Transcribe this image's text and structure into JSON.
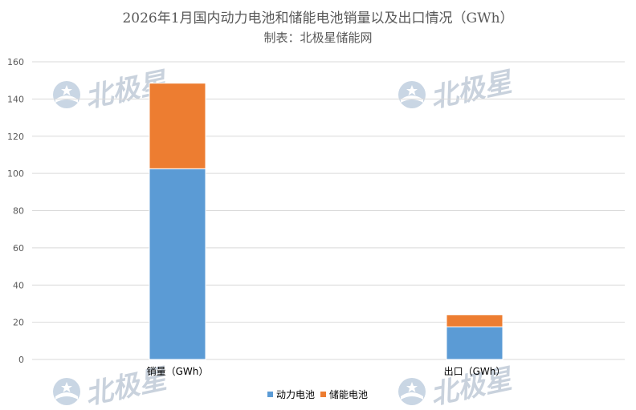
{
  "watermark": {
    "text": "北极星"
  },
  "chart_data": {
    "type": "bar",
    "stacked": true,
    "title": "2026年1月国内动力电池和储能电池销量以及出口情况（GWh）",
    "subtitle": "制表：北极星储能网",
    "categories": [
      "销量（GWh）",
      "出口（GWh）"
    ],
    "series": [
      {
        "name": "动力电池",
        "color": "#5b9bd5",
        "values": [
          102.5,
          17.5
        ]
      },
      {
        "name": "储能电池",
        "color": "#ed7d31",
        "values": [
          46.0,
          6.5
        ]
      }
    ],
    "ylim": [
      0,
      160
    ],
    "yticks": [
      0,
      20,
      40,
      60,
      80,
      100,
      120,
      140,
      160
    ],
    "grid": true,
    "legend": "bottom-center",
    "xlabel": "",
    "ylabel": ""
  }
}
